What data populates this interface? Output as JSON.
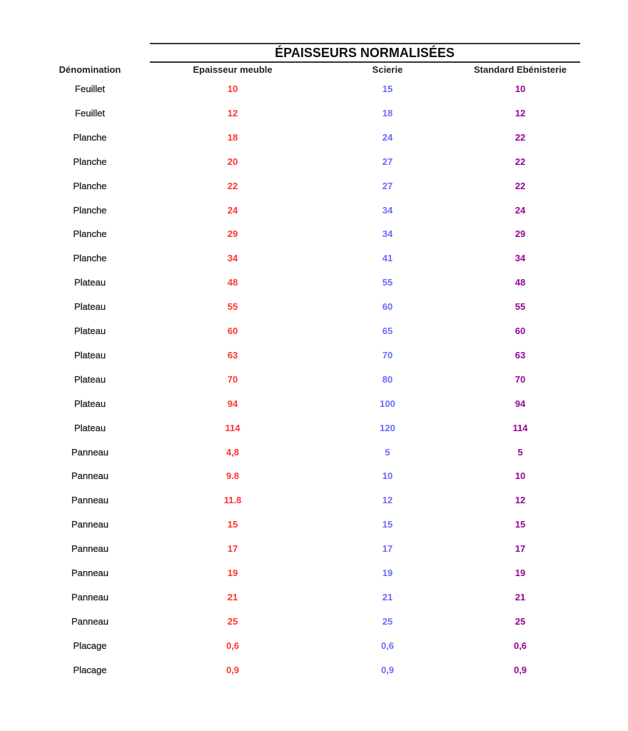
{
  "title": "ÉPAISSEURS NORMALISÉES",
  "headers": [
    "Dénomination",
    "Epaisseur meuble",
    "Scierie",
    "Standard Ebénisterie"
  ],
  "colors": {
    "epaisseur_meuble": "#ff3333",
    "scierie": "#6a6aff",
    "standard_ebenisterie": "#990099"
  },
  "rows": [
    [
      "Feuillet",
      "10",
      "15",
      "10"
    ],
    [
      "Feuillet",
      "12",
      "18",
      "12"
    ],
    [
      "Planche",
      "18",
      "24",
      "22"
    ],
    [
      "Planche",
      "20",
      "27",
      "22"
    ],
    [
      "Planche",
      "22",
      "27",
      "22"
    ],
    [
      "Planche",
      "24",
      "34",
      "24"
    ],
    [
      "Planche",
      "29",
      "34",
      "29"
    ],
    [
      "Planche",
      "34",
      "41",
      "34"
    ],
    [
      "Plateau",
      "48",
      "55",
      "48"
    ],
    [
      "Plateau",
      "55",
      "60",
      "55"
    ],
    [
      "Plateau",
      "60",
      "65",
      "60"
    ],
    [
      "Plateau",
      "63",
      "70",
      "63"
    ],
    [
      "Plateau",
      "70",
      "80",
      "70"
    ],
    [
      "Plateau",
      "94",
      "100",
      "94"
    ],
    [
      "Plateau",
      "114",
      "120",
      "114"
    ],
    [
      "Panneau",
      "4,8",
      "5",
      "5"
    ],
    [
      "Panneau",
      "9.8",
      "10",
      "10"
    ],
    [
      "Panneau",
      "11.8",
      "12",
      "12"
    ],
    [
      "Panneau",
      "15",
      "15",
      "15"
    ],
    [
      "Panneau",
      "17",
      "17",
      "17"
    ],
    [
      "Panneau",
      "19",
      "19",
      "19"
    ],
    [
      "Panneau",
      "21",
      "21",
      "21"
    ],
    [
      "Panneau",
      "25",
      "25",
      "25"
    ],
    [
      "Placage",
      "0,6",
      "0,6",
      "0,6"
    ],
    [
      "Placage",
      "0,9",
      "0,9",
      "0,9"
    ]
  ]
}
